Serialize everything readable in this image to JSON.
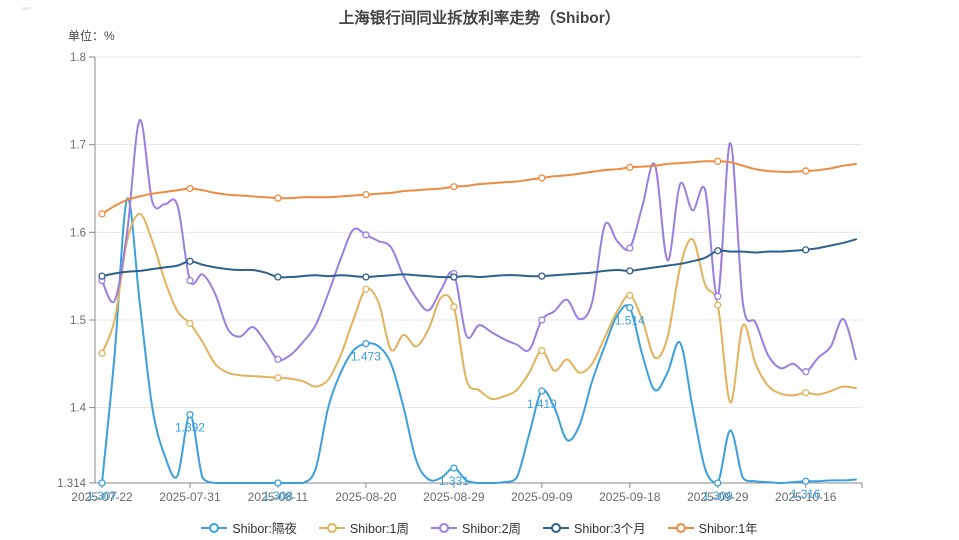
{
  "title": "上海银行间同业拆放利率走势（Shibor）",
  "unit_label": "单位：%",
  "chart_data": {
    "type": "line",
    "smooth": true,
    "grid": true,
    "legend_position": "bottom",
    "ylim": [
      1.314,
      1.8
    ],
    "y_ticks": [
      1.314,
      1.4,
      1.5,
      1.6,
      1.7,
      1.8
    ],
    "y_tick_labels": [
      "1.314",
      "1.4",
      "1.5",
      "1.6",
      "1.7",
      "1.8"
    ],
    "x": [
      "2025-07-22",
      "2025-07-23",
      "2025-07-24",
      "2025-07-25",
      "2025-07-28",
      "2025-07-29",
      "2025-07-30",
      "2025-07-31",
      "2025-08-01",
      "2025-08-04",
      "2025-08-05",
      "2025-08-06",
      "2025-08-07",
      "2025-08-08",
      "2025-08-11",
      "2025-08-12",
      "2025-08-13",
      "2025-08-14",
      "2025-08-15",
      "2025-08-18",
      "2025-08-19",
      "2025-08-20",
      "2025-08-21",
      "2025-08-22",
      "2025-08-25",
      "2025-08-26",
      "2025-08-27",
      "2025-08-28",
      "2025-08-29",
      "2025-09-01",
      "2025-09-02",
      "2025-09-03",
      "2025-09-04",
      "2025-09-05",
      "2025-09-08",
      "2025-09-09",
      "2025-09-10",
      "2025-09-11",
      "2025-09-12",
      "2025-09-15",
      "2025-09-16",
      "2025-09-17",
      "2025-09-18",
      "2025-09-19",
      "2025-09-22",
      "2025-09-23",
      "2025-09-24",
      "2025-09-25",
      "2025-09-26",
      "2025-09-29",
      "2025-09-30",
      "2025-10-09",
      "2025-10-10",
      "2025-10-13",
      "2025-10-14",
      "2025-10-15",
      "2025-10-16",
      "2025-10-17",
      "2025-10-20",
      "2025-10-21",
      "2025-10-22"
    ],
    "x_tick_indices": [
      0,
      7,
      14,
      21,
      28,
      35,
      42,
      49,
      56
    ],
    "x_tick_labels": [
      "2025-07-22",
      "2025-07-31",
      "2025-08-11",
      "2025-08-20",
      "2025-08-29",
      "2025-09-09",
      "2025-09-18",
      "2025-09-29",
      "2025-10-16"
    ],
    "marker_indices": [
      0,
      7,
      14,
      21,
      28,
      35,
      42,
      49,
      56
    ],
    "series": [
      {
        "name": "Shibor:隔夜",
        "key": "overnight",
        "color": "#3ba0dc",
        "show_point_labels": true,
        "point_labels": {
          "indices": [
            0,
            7,
            14,
            21,
            28,
            35,
            42,
            49,
            56
          ],
          "texts": [
            "1.307",
            "1.392",
            "1.308",
            "1.473",
            "1.331",
            "1.419",
            "1.514",
            "1.309",
            "1.316"
          ]
        },
        "values": [
          1.307,
          1.46,
          1.638,
          1.52,
          1.4,
          1.345,
          1.322,
          1.392,
          1.32,
          1.312,
          1.311,
          1.31,
          1.309,
          1.309,
          1.308,
          1.309,
          1.312,
          1.33,
          1.4,
          1.44,
          1.465,
          1.473,
          1.47,
          1.45,
          1.4,
          1.34,
          1.318,
          1.32,
          1.331,
          1.317,
          1.314,
          1.314,
          1.315,
          1.32,
          1.37,
          1.419,
          1.4,
          1.363,
          1.38,
          1.43,
          1.47,
          1.505,
          1.514,
          1.46,
          1.42,
          1.44,
          1.474,
          1.4,
          1.33,
          1.309,
          1.374,
          1.32,
          1.316,
          1.315,
          1.314,
          1.315,
          1.316,
          1.316,
          1.317,
          1.317,
          1.318
        ]
      },
      {
        "name": "Shibor:1周",
        "key": "1w",
        "color": "#e3b25c",
        "show_point_labels": false,
        "values": [
          1.462,
          1.5,
          1.59,
          1.621,
          1.59,
          1.545,
          1.51,
          1.496,
          1.475,
          1.45,
          1.44,
          1.437,
          1.436,
          1.435,
          1.434,
          1.433,
          1.43,
          1.424,
          1.432,
          1.46,
          1.5,
          1.535,
          1.52,
          1.466,
          1.483,
          1.47,
          1.49,
          1.526,
          1.515,
          1.432,
          1.42,
          1.41,
          1.413,
          1.42,
          1.44,
          1.465,
          1.442,
          1.455,
          1.44,
          1.45,
          1.48,
          1.51,
          1.528,
          1.5,
          1.457,
          1.48,
          1.56,
          1.592,
          1.54,
          1.517,
          1.406,
          1.494,
          1.45,
          1.425,
          1.416,
          1.414,
          1.417,
          1.415,
          1.419,
          1.424,
          1.422
        ]
      },
      {
        "name": "Shibor:2周",
        "key": "2w",
        "color": "#9a7fe0",
        "show_point_labels": false,
        "values": [
          1.545,
          1.522,
          1.6,
          1.728,
          1.635,
          1.632,
          1.631,
          1.545,
          1.552,
          1.53,
          1.49,
          1.481,
          1.492,
          1.475,
          1.455,
          1.46,
          1.475,
          1.494,
          1.53,
          1.57,
          1.603,
          1.597,
          1.59,
          1.583,
          1.55,
          1.525,
          1.511,
          1.535,
          1.553,
          1.482,
          1.494,
          1.486,
          1.478,
          1.472,
          1.466,
          1.5,
          1.51,
          1.523,
          1.501,
          1.52,
          1.608,
          1.59,
          1.582,
          1.63,
          1.677,
          1.568,
          1.655,
          1.625,
          1.648,
          1.527,
          1.702,
          1.519,
          1.497,
          1.46,
          1.445,
          1.45,
          1.441,
          1.457,
          1.47,
          1.501,
          1.455
        ]
      },
      {
        "name": "Shibor:3个月",
        "key": "3m",
        "color": "#2e608c",
        "show_point_labels": false,
        "values": [
          1.55,
          1.553,
          1.555,
          1.556,
          1.558,
          1.56,
          1.562,
          1.567,
          1.563,
          1.56,
          1.558,
          1.557,
          1.557,
          1.554,
          1.549,
          1.549,
          1.55,
          1.551,
          1.55,
          1.551,
          1.55,
          1.549,
          1.55,
          1.551,
          1.552,
          1.551,
          1.55,
          1.549,
          1.549,
          1.55,
          1.549,
          1.55,
          1.551,
          1.551,
          1.55,
          1.55,
          1.551,
          1.552,
          1.553,
          1.554,
          1.556,
          1.557,
          1.556,
          1.558,
          1.56,
          1.562,
          1.564,
          1.567,
          1.571,
          1.579,
          1.578,
          1.578,
          1.577,
          1.578,
          1.578,
          1.579,
          1.58,
          1.582,
          1.585,
          1.588,
          1.592
        ]
      },
      {
        "name": "Shibor:1年",
        "key": "1y",
        "color": "#ee8b3e",
        "show_point_labels": false,
        "values": [
          1.621,
          1.63,
          1.637,
          1.641,
          1.644,
          1.646,
          1.648,
          1.65,
          1.648,
          1.645,
          1.643,
          1.642,
          1.641,
          1.64,
          1.639,
          1.639,
          1.64,
          1.64,
          1.64,
          1.641,
          1.642,
          1.643,
          1.644,
          1.645,
          1.647,
          1.648,
          1.649,
          1.65,
          1.652,
          1.653,
          1.655,
          1.656,
          1.657,
          1.658,
          1.66,
          1.662,
          1.664,
          1.665,
          1.667,
          1.669,
          1.671,
          1.672,
          1.674,
          1.675,
          1.676,
          1.678,
          1.679,
          1.68,
          1.681,
          1.681,
          1.68,
          1.676,
          1.672,
          1.67,
          1.669,
          1.669,
          1.67,
          1.671,
          1.673,
          1.676,
          1.678
        ]
      }
    ],
    "colors": {
      "grid_line": "#e5e5e5",
      "axis_line": "#888888",
      "axis_text": "#6b6b6b",
      "title_text": "#444444"
    }
  }
}
